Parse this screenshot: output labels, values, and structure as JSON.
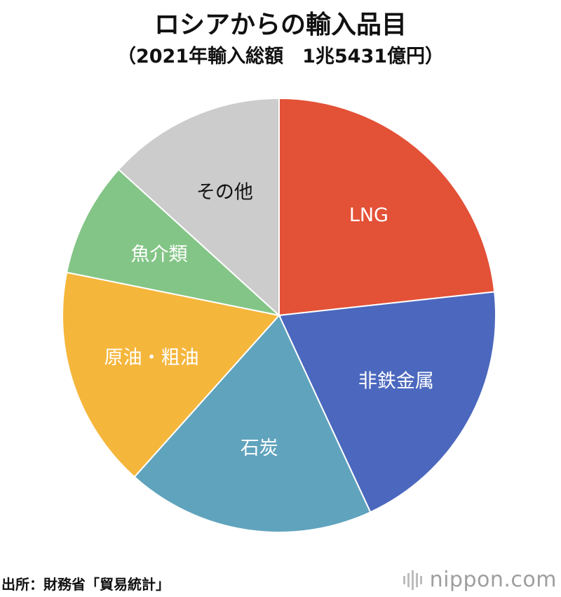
{
  "title": "ロシアからの輸入品目",
  "subtitle": "（2021年輸入総額　1兆5431億円）",
  "source": "出所：財務省「貿易統計」",
  "logo": "nippon.com",
  "chart_data": {
    "type": "pie",
    "title": "ロシアからの輸入品目",
    "subtitle": "（2021年輸入総額　1兆5431億円）",
    "start_angle_deg": 0,
    "direction": "clockwise",
    "slices": [
      {
        "label": "LNG",
        "value": 24.2,
        "color": "#e35137",
        "label_color": "#ffffff"
      },
      {
        "label": "非鉄金属",
        "value": 20.6,
        "color": "#4b68be",
        "label_color": "#ffffff"
      },
      {
        "label": "石炭",
        "value": 19.3,
        "color": "#60a3bd",
        "label_color": "#ffffff"
      },
      {
        "label": "原油・粗油",
        "value": 17.2,
        "color": "#f5b63c",
        "label_color": "#ffffff"
      },
      {
        "label": "魚介類",
        "value": 8.9,
        "color": "#83c586",
        "label_color": "#ffffff"
      },
      {
        "label": "その他",
        "value": 13.8,
        "color": "#cccccc",
        "label_color": "#111111"
      }
    ]
  }
}
